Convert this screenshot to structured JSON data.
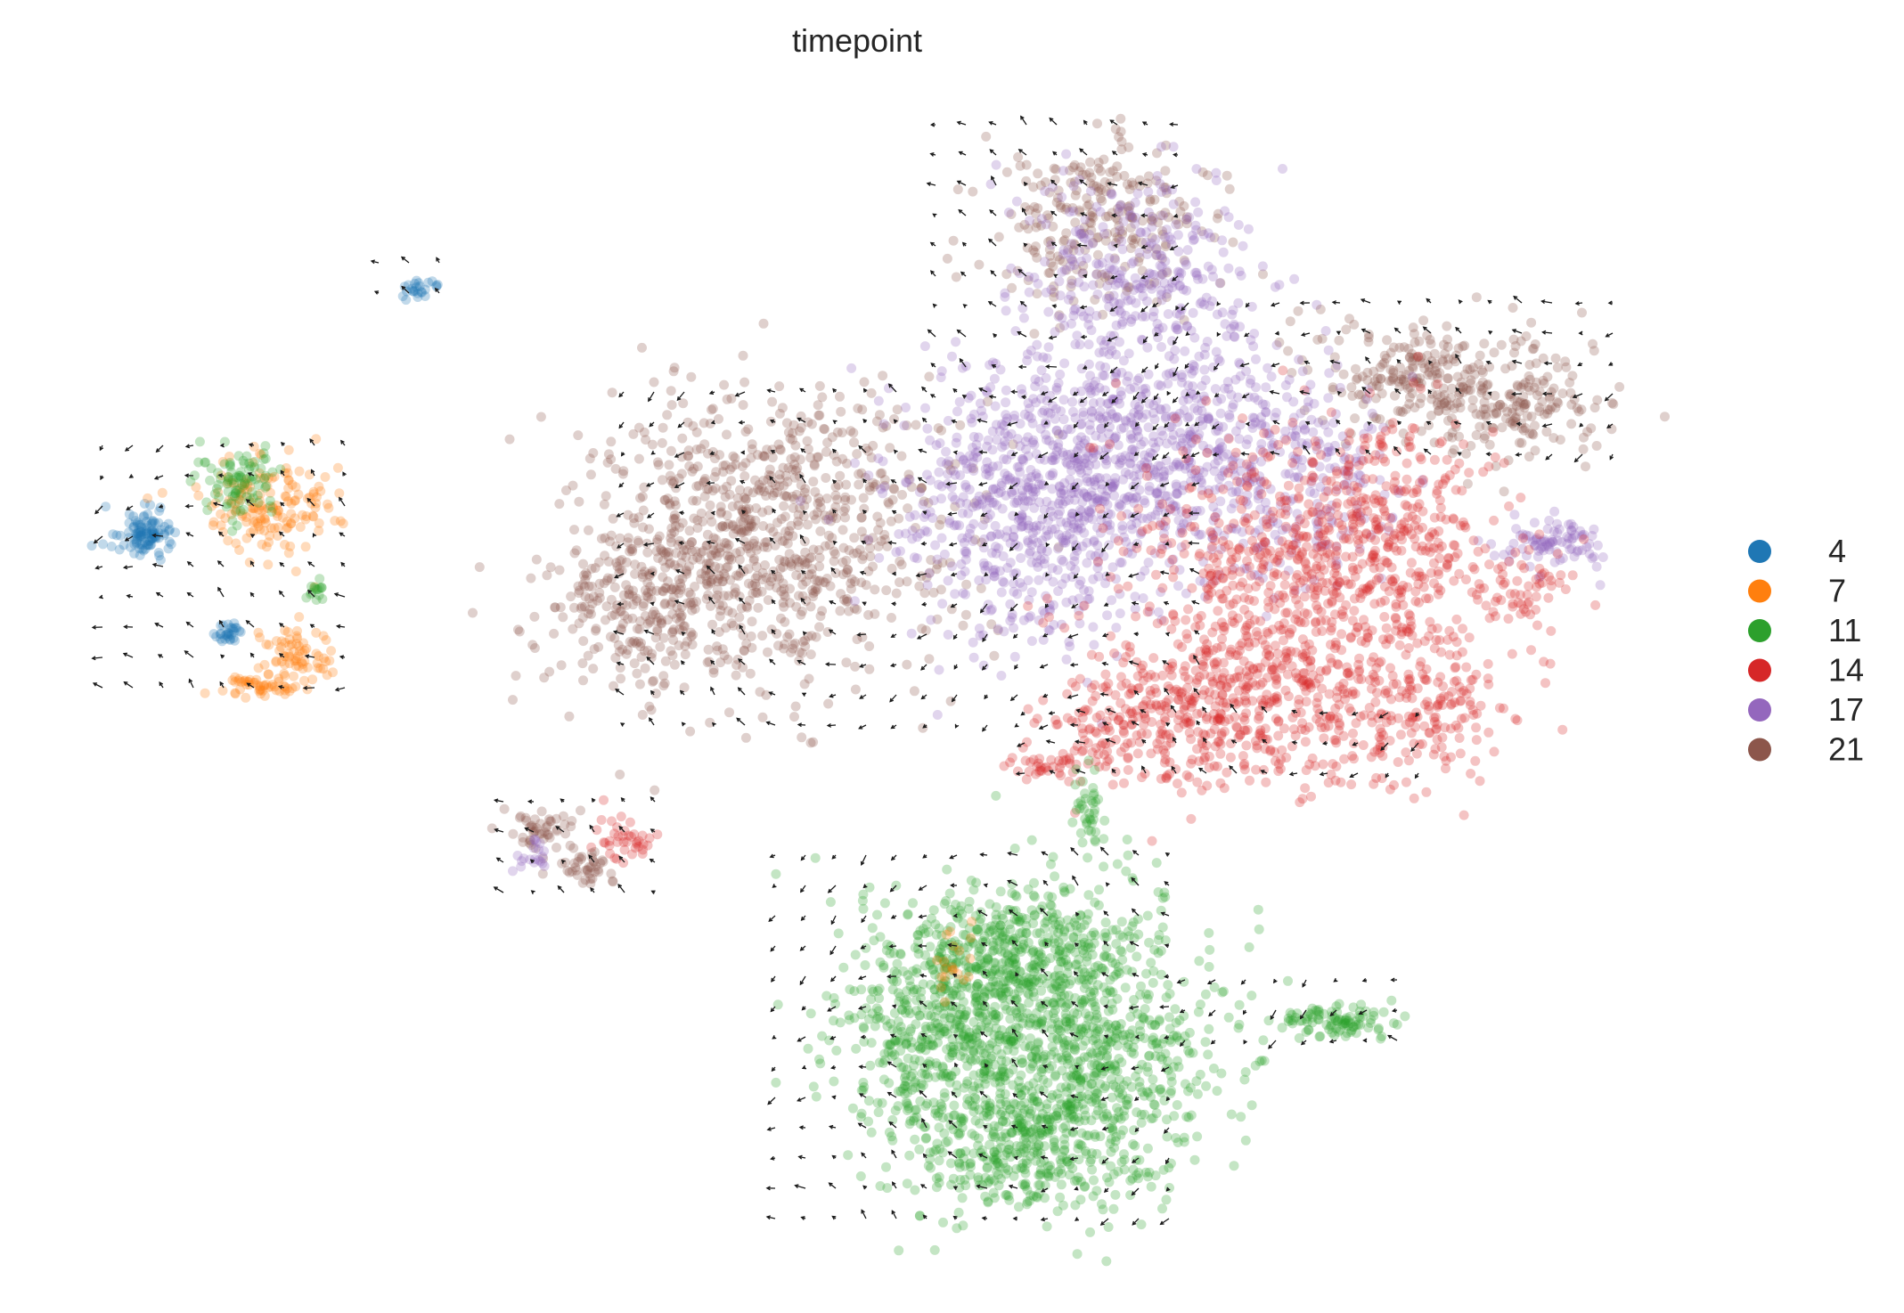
{
  "chart_data": {
    "type": "scatter",
    "title": "timepoint",
    "xlabel": "",
    "ylabel": "",
    "axes_visible": false,
    "grid": false,
    "legend_position": "right",
    "overlay": "velocity stream arrows on a regular grid",
    "series": [
      {
        "name": "4",
        "color": "#1f77b4"
      },
      {
        "name": "7",
        "color": "#ff7f0e"
      },
      {
        "name": "11",
        "color": "#2ca02c"
      },
      {
        "name": "14",
        "color": "#d62728"
      },
      {
        "name": "17",
        "color": "#9467bd"
      },
      {
        "name": "21",
        "color": "#8c564b"
      }
    ],
    "colors": {
      "arrow": "#1a1a1a",
      "text": "#262626",
      "background": "#ffffff"
    }
  }
}
